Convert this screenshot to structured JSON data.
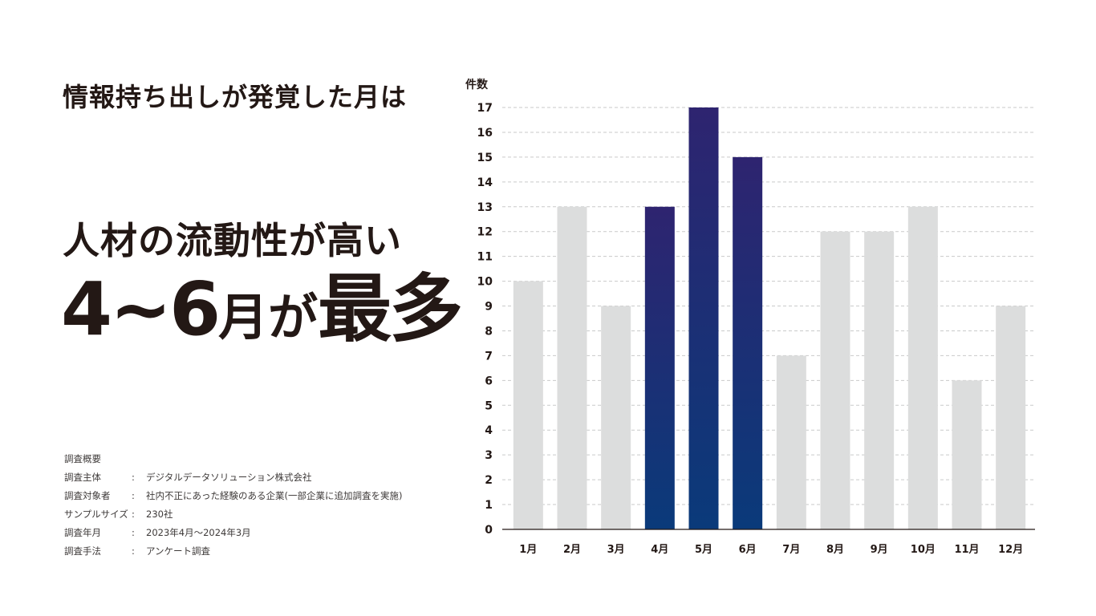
{
  "heading": "情報持ち出しが発覚した月は",
  "headline": {
    "line1": "人材の流動性が高い",
    "line2_main": "4~6",
    "line2_small": "月が",
    "line2_end": "最多"
  },
  "survey": {
    "title": "調査概要",
    "rows": [
      {
        "label": "調査主体",
        "colon": ":",
        "value": "デジタルデータソリューション株式会社"
      },
      {
        "label": "調査対象者",
        "colon": ":",
        "value": "社内不正にあった経験のある企業(一部企業に追加調査を実施)"
      },
      {
        "label": "サンプルサイズ",
        "colon": ":",
        "value": "230社"
      },
      {
        "label": "調査年月",
        "colon": ":",
        "value": "2023年4月～2024年3月"
      },
      {
        "label": "調査手法",
        "colon": ":",
        "value": "アンケート調査"
      }
    ]
  },
  "colors": {
    "highlight_top": "#2e2470",
    "highlight_bottom": "#0a3a7a",
    "normal": "#dcdddd",
    "grid": "#c9caca",
    "axis": "#231815"
  },
  "chart_data": {
    "type": "bar",
    "title": "",
    "xlabel": "",
    "ylabel": "件数",
    "categories": [
      "1月",
      "2月",
      "3月",
      "4月",
      "5月",
      "6月",
      "7月",
      "8月",
      "9月",
      "10月",
      "11月",
      "12月"
    ],
    "values": [
      10,
      13,
      9,
      13,
      17,
      15,
      7,
      12,
      12,
      13,
      6,
      9
    ],
    "highlighted": [
      "4月",
      "5月",
      "6月"
    ],
    "ylim": [
      0,
      17
    ],
    "yticks": [
      "0",
      "1",
      "2",
      "3",
      "4",
      "5",
      "6",
      "7",
      "8",
      "9",
      "10",
      "11",
      "12",
      "13",
      "14",
      "15",
      "16",
      "17"
    ],
    "grid": true
  }
}
